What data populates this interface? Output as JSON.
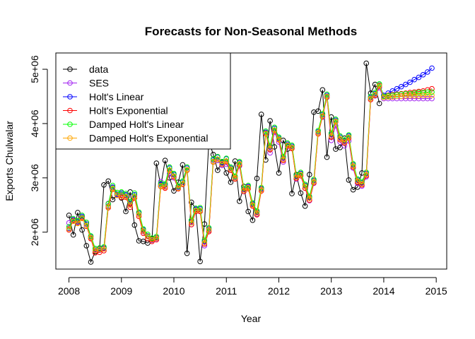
{
  "chart_data": {
    "type": "line",
    "title": "Forecasts for Non-Seasonal Methods",
    "xlabel": "Year",
    "ylabel": "Exports Chulwalar",
    "xlim": [
      2007.75,
      2015.2
    ],
    "ylim": [
      1320000,
      5300000
    ],
    "x_ticks": [
      2008,
      2009,
      2010,
      2011,
      2012,
      2013,
      2014,
      2015
    ],
    "x_tick_labels": [
      "2008",
      "2009",
      "2010",
      "2011",
      "2012",
      "2013",
      "2014",
      "2015"
    ],
    "y_ticks": [
      2000000,
      3000000,
      4000000,
      5000000
    ],
    "y_tick_labels": [
      "2e+06",
      "3e+06",
      "4e+06",
      "5e+06"
    ],
    "legend_position": "top-left",
    "series": [
      {
        "name": "data",
        "color": "#000000",
        "start": 2008,
        "step": 0.0833333,
        "values": [
          2310000,
          1950000,
          2360000,
          2040000,
          1750000,
          1450000,
          1640000,
          1700000,
          2870000,
          2940000,
          2600000,
          2680000,
          2630000,
          2380000,
          2740000,
          2130000,
          1840000,
          1830000,
          1800000,
          1880000,
          3270000,
          2850000,
          3320000,
          3000000,
          2760000,
          2920000,
          3240000,
          1610000,
          2550000,
          2430000,
          1460000,
          2150000,
          3680000,
          3430000,
          3140000,
          3290000,
          3090000,
          2920000,
          3310000,
          2570000,
          2840000,
          2380000,
          2220000,
          2990000,
          4170000,
          3330000,
          4050000,
          3570000,
          3090000,
          3690000,
          3530000,
          2710000,
          3060000,
          2720000,
          2480000,
          3060000,
          4210000,
          4230000,
          4620000,
          3380000,
          4120000,
          3530000,
          3560000,
          3730000,
          2960000,
          2780000,
          2830000,
          3090000,
          5110000,
          4560000,
          4720000,
          4370000
        ]
      },
      {
        "name": "SES",
        "color": "#a020f0",
        "start": 2008,
        "step": 0.0833333,
        "values": [
          2170000,
          2220000,
          2200000,
          2270000,
          2180000,
          1890000,
          1680000,
          1690000,
          1700000,
          2530000,
          2820000,
          2700000,
          2690000,
          2670000,
          2540000,
          2660000,
          2320000,
          2010000,
          1920000,
          1850000,
          1880000,
          2930000,
          2840000,
          3080000,
          3000000,
          2800000,
          2890000,
          3140000,
          2140000,
          2430000,
          2390000,
          1750000,
          2030000,
          3300000,
          3320000,
          3230000,
          3250000,
          3140000,
          3000000,
          3220000,
          2750000,
          2830000,
          2510000,
          2330000,
          2790000,
          3830000,
          3460000,
          3840000,
          3660000,
          3290000,
          3580000,
          3550000,
          2980000,
          3040000,
          2810000,
          2580000,
          2900000,
          3830000,
          4120000,
          4480000,
          3690000,
          3960000,
          3660000,
          3590000,
          3680000,
          3180000,
          2900000,
          2850000,
          3020000,
          4440000,
          4510000,
          4660000,
          4460000,
          4460000,
          4460000,
          4460000,
          4460000,
          4460000,
          4460000,
          4460000,
          4460000,
          4460000,
          4460000,
          4460000
        ]
      },
      {
        "name": "Holt's Linear",
        "color": "#0000ff",
        "start": 2008,
        "step": 0.0833333,
        "values": [
          2070000,
          2230000,
          2190000,
          2290000,
          2150000,
          1920000,
          1660000,
          1670000,
          1710000,
          2480000,
          2830000,
          2700000,
          2720000,
          2690000,
          2520000,
          2690000,
          2350000,
          2040000,
          1930000,
          1860000,
          1900000,
          2880000,
          2870000,
          3180000,
          3060000,
          2830000,
          2920000,
          3180000,
          2190000,
          2420000,
          2430000,
          1830000,
          2060000,
          3330000,
          3380000,
          3280000,
          3350000,
          3180000,
          3010000,
          3280000,
          2790000,
          2840000,
          2520000,
          2370000,
          2800000,
          3840000,
          3570000,
          3910000,
          3730000,
          3370000,
          3620000,
          3580000,
          3030000,
          3080000,
          2860000,
          2640000,
          2950000,
          3850000,
          4160000,
          4520000,
          3800000,
          4060000,
          3750000,
          3680000,
          3770000,
          3240000,
          2960000,
          2910000,
          3080000,
          4480000,
          4550000,
          4710000,
          4520000,
          4560000,
          4600000,
          4640000,
          4680000,
          4720000,
          4760000,
          4810000,
          4850000,
          4900000,
          4950000,
          5020000
        ]
      },
      {
        "name": "Holt's Exponential",
        "color": "#ff0000",
        "start": 2008,
        "step": 0.0833333,
        "values": [
          2040000,
          2210000,
          2170000,
          2260000,
          2110000,
          1880000,
          1620000,
          1630000,
          1660000,
          2450000,
          2790000,
          2680000,
          2640000,
          2640000,
          2460000,
          2630000,
          2290000,
          1980000,
          1880000,
          1830000,
          1860000,
          2840000,
          2810000,
          3130000,
          3020000,
          2800000,
          2880000,
          3140000,
          2140000,
          2380000,
          2380000,
          1780000,
          2010000,
          3290000,
          3340000,
          3250000,
          3300000,
          3140000,
          2980000,
          3240000,
          2750000,
          2800000,
          2480000,
          2320000,
          2760000,
          3810000,
          3520000,
          3870000,
          3700000,
          3320000,
          3590000,
          3540000,
          2990000,
          3040000,
          2810000,
          2590000,
          2910000,
          3810000,
          4130000,
          4490000,
          3750000,
          4030000,
          3700000,
          3640000,
          3730000,
          3200000,
          2920000,
          2870000,
          3040000,
          4440000,
          4520000,
          4690000,
          4500000,
          4520000,
          4530000,
          4540000,
          4550000,
          4560000,
          4570000,
          4580000,
          4590000,
          4600000,
          4620000,
          4640000
        ]
      },
      {
        "name": "Damped Holt's Linear",
        "color": "#00ff00",
        "start": 2008,
        "step": 0.0833333,
        "values": [
          2100000,
          2250000,
          2210000,
          2310000,
          2180000,
          1930000,
          1700000,
          1710000,
          1730000,
          2520000,
          2860000,
          2730000,
          2740000,
          2710000,
          2560000,
          2720000,
          2370000,
          2060000,
          1960000,
          1890000,
          1920000,
          2900000,
          2890000,
          3200000,
          3080000,
          2850000,
          2940000,
          3200000,
          2220000,
          2440000,
          2450000,
          1850000,
          2080000,
          3350000,
          3390000,
          3300000,
          3360000,
          3200000,
          3030000,
          3300000,
          2810000,
          2860000,
          2540000,
          2390000,
          2820000,
          3860000,
          3590000,
          3930000,
          3750000,
          3390000,
          3640000,
          3600000,
          3050000,
          3100000,
          2880000,
          2660000,
          2970000,
          3870000,
          4180000,
          4540000,
          3820000,
          4080000,
          3770000,
          3700000,
          3790000,
          3260000,
          2980000,
          2930000,
          3100000,
          4500000,
          4570000,
          4730000,
          4500000,
          4510000,
          4520000,
          4530000,
          4540000,
          4550000,
          4550000,
          4560000,
          4570000,
          4570000,
          4580000,
          4580000
        ]
      },
      {
        "name": "Damped Holt's Exponential",
        "color": "#ffa500",
        "start": 2008,
        "step": 0.0833333,
        "values": [
          2060000,
          2200000,
          2160000,
          2250000,
          2120000,
          1900000,
          1660000,
          1680000,
          1690000,
          2470000,
          2800000,
          2680000,
          2670000,
          2650000,
          2500000,
          2650000,
          2320000,
          2020000,
          1920000,
          1860000,
          1890000,
          2850000,
          2830000,
          3140000,
          3030000,
          2810000,
          2890000,
          3150000,
          2170000,
          2400000,
          2400000,
          1800000,
          2040000,
          3300000,
          3340000,
          3260000,
          3310000,
          3160000,
          3000000,
          3260000,
          2770000,
          2820000,
          2500000,
          2350000,
          2780000,
          3820000,
          3540000,
          3880000,
          3710000,
          3340000,
          3600000,
          3560000,
          3010000,
          3060000,
          2840000,
          2620000,
          2930000,
          3830000,
          4140000,
          4500000,
          3770000,
          4040000,
          3720000,
          3660000,
          3750000,
          3220000,
          2940000,
          2890000,
          3060000,
          4460000,
          4530000,
          4700000,
          4480000,
          4490000,
          4490000,
          4500000,
          4500000,
          4510000,
          4510000,
          4510000,
          4510000,
          4520000,
          4520000,
          4520000
        ]
      }
    ]
  }
}
